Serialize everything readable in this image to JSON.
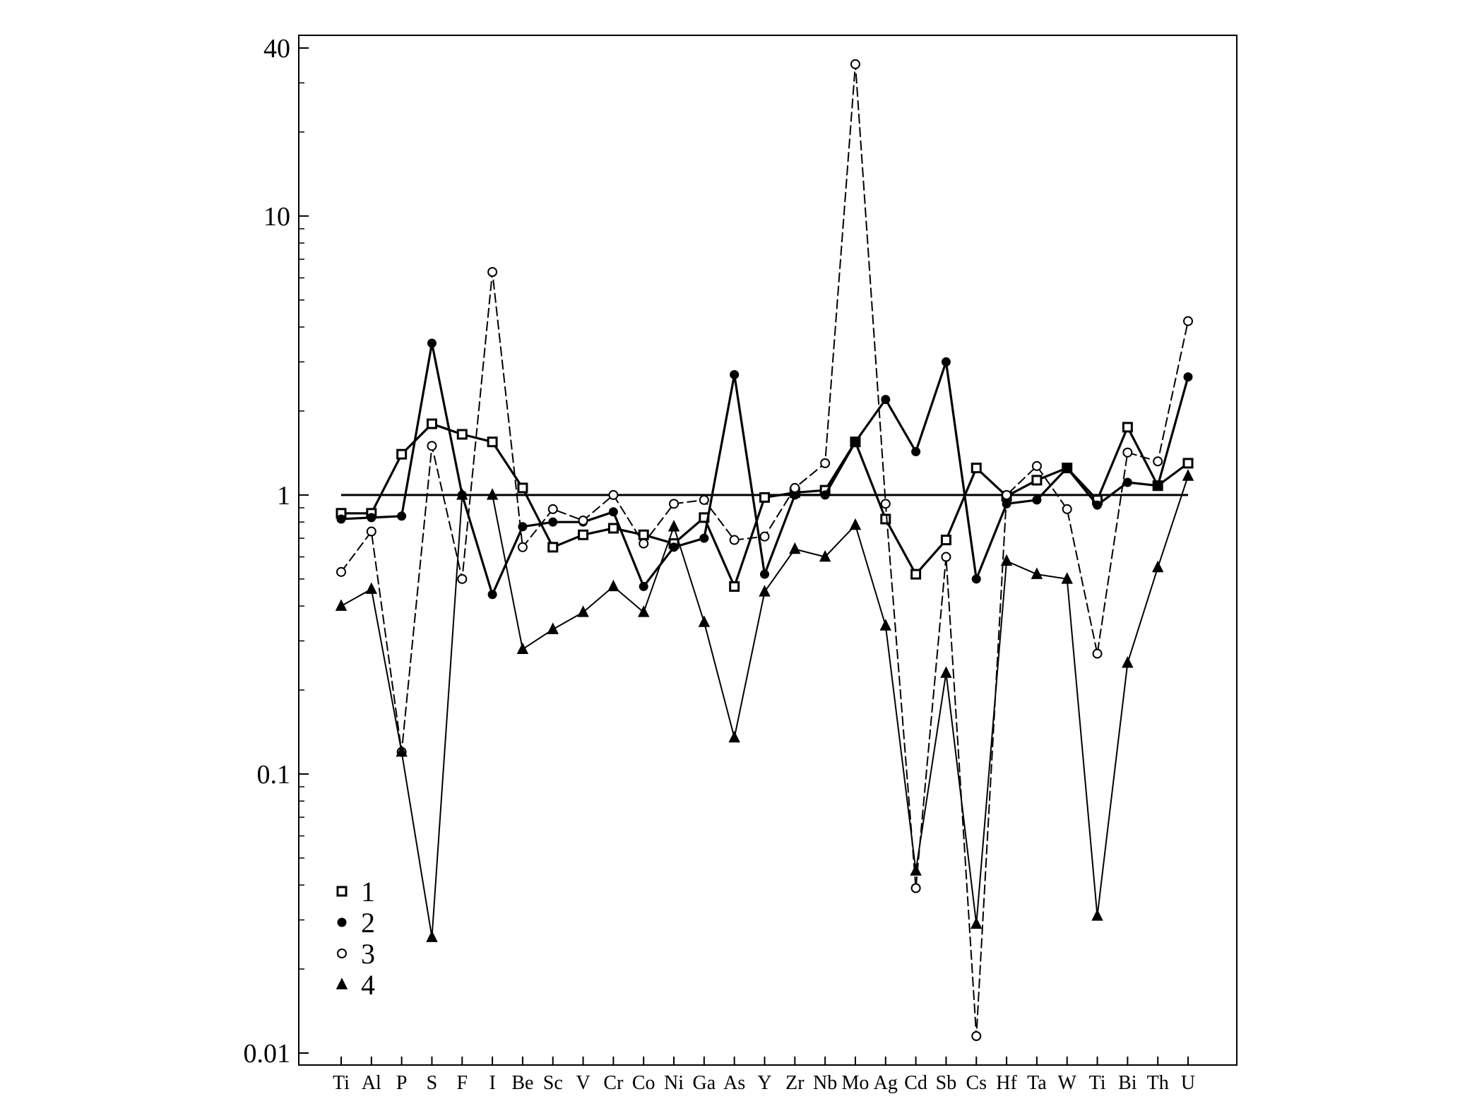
{
  "chart_data": {
    "type": "line",
    "title": "",
    "xlabel": "",
    "ylabel": "",
    "yscale": "log",
    "ylim": [
      0.01,
      40
    ],
    "yticks": [
      "0.01",
      "0.1",
      "1",
      "10",
      "40"
    ],
    "categories": [
      "Ti",
      "Al",
      "P",
      "S",
      "F",
      "I",
      "Be",
      "Sc",
      "V",
      "Cr",
      "Co",
      "Ni",
      "Ga",
      "As",
      "Y",
      "Zr",
      "Nb",
      "Mo",
      "Ag",
      "Cd",
      "Sb",
      "Cs",
      "Hf",
      "Ta",
      "W",
      "Ti",
      "Bi",
      "Th",
      "U"
    ],
    "reference_line": 1,
    "legend_position": "bottom-left",
    "series": [
      {
        "name": "1",
        "marker": "open-square",
        "line": "solid-thick",
        "values": [
          0.86,
          0.86,
          1.4,
          1.8,
          1.65,
          1.55,
          1.06,
          0.65,
          0.72,
          0.76,
          0.72,
          0.67,
          0.83,
          0.47,
          0.98,
          1.02,
          1.04,
          1.55,
          0.82,
          0.52,
          0.69,
          1.25,
          0.99,
          1.13,
          1.25,
          0.96,
          1.75,
          1.08,
          1.3
        ]
      },
      {
        "name": "2",
        "marker": "filled-circle",
        "line": "solid-thick",
        "values": [
          0.82,
          0.83,
          0.84,
          3.5,
          1.0,
          0.44,
          0.77,
          0.8,
          0.8,
          0.87,
          0.47,
          0.65,
          0.7,
          2.7,
          0.52,
          1.0,
          1.0,
          1.55,
          2.2,
          1.43,
          3.0,
          0.5,
          0.93,
          0.96,
          1.25,
          0.92,
          1.11,
          1.08,
          2.65
        ]
      },
      {
        "name": "3",
        "marker": "open-circle",
        "line": "dashed",
        "values": [
          0.53,
          0.74,
          0.12,
          1.5,
          0.5,
          6.3,
          0.65,
          0.89,
          0.81,
          1.0,
          0.67,
          0.93,
          0.96,
          0.69,
          0.71,
          1.06,
          1.3,
          35,
          0.93,
          0.039,
          0.6,
          0.0115,
          1.0,
          1.27,
          0.89,
          0.27,
          1.42,
          1.32,
          4.2
        ]
      },
      {
        "name": "4",
        "marker": "filled-triangle",
        "line": "solid-thin",
        "values": [
          0.4,
          0.46,
          0.12,
          0.026,
          1.0,
          1.0,
          0.28,
          0.33,
          0.38,
          0.47,
          0.38,
          0.77,
          0.35,
          0.135,
          0.45,
          0.64,
          0.6,
          0.78,
          0.34,
          0.045,
          0.23,
          0.029,
          0.58,
          0.52,
          0.5,
          0.031,
          0.25,
          0.55,
          1.17
        ]
      }
    ]
  }
}
